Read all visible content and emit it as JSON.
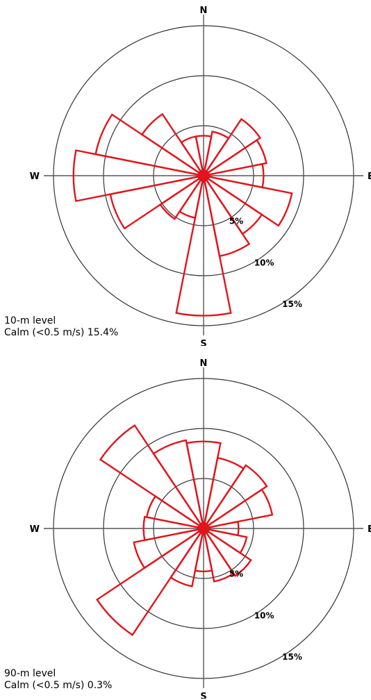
{
  "chart_data": [
    {
      "type": "wind-rose",
      "level_label": "10-m level",
      "calm_label": "Calm (<0.5 m/s) 15.4%",
      "directions": [
        "N",
        "NNE",
        "NE",
        "ENE",
        "E",
        "ESE",
        "SE",
        "SSE",
        "S",
        "SSW",
        "SW",
        "WSW",
        "W",
        "WNW",
        "NW",
        "NNW"
      ],
      "values": [
        4.0,
        4.5,
        6.8,
        6.4,
        6.0,
        9.0,
        7.0,
        8.2,
        14.0,
        4.3,
        5.2,
        9.5,
        13.0,
        11.0,
        7.4,
        4.0
      ],
      "unit": "%",
      "rings": [
        5,
        10,
        15
      ],
      "ring_labels": [
        "5%",
        "10%",
        "15%"
      ],
      "compass_labels": {
        "N": "N",
        "E": "E",
        "S": "S",
        "W": "W"
      },
      "bar_color": "#e0151b"
    },
    {
      "type": "wind-rose",
      "level_label": "90-m level",
      "calm_label": "Calm (<0.5 m/s) 0.3%",
      "directions": [
        "N",
        "NNE",
        "NE",
        "ENE",
        "E",
        "ESE",
        "SE",
        "SSE",
        "S",
        "SSW",
        "SW",
        "WSW",
        "W",
        "WNW",
        "NW",
        "NNW"
      ],
      "values": [
        8.7,
        7.2,
        7.6,
        7.0,
        3.5,
        4.4,
        5.7,
        5.4,
        4.3,
        5.9,
        12.8,
        7.1,
        6.0,
        5.8,
        12.4,
        9.0
      ],
      "unit": "%",
      "rings": [
        5,
        10,
        15
      ],
      "ring_labels": [
        "5%",
        "10%",
        "15%"
      ],
      "compass_labels": {
        "N": "N",
        "E": "E",
        "S": "S",
        "W": "W"
      },
      "bar_color": "#e0151b"
    }
  ]
}
